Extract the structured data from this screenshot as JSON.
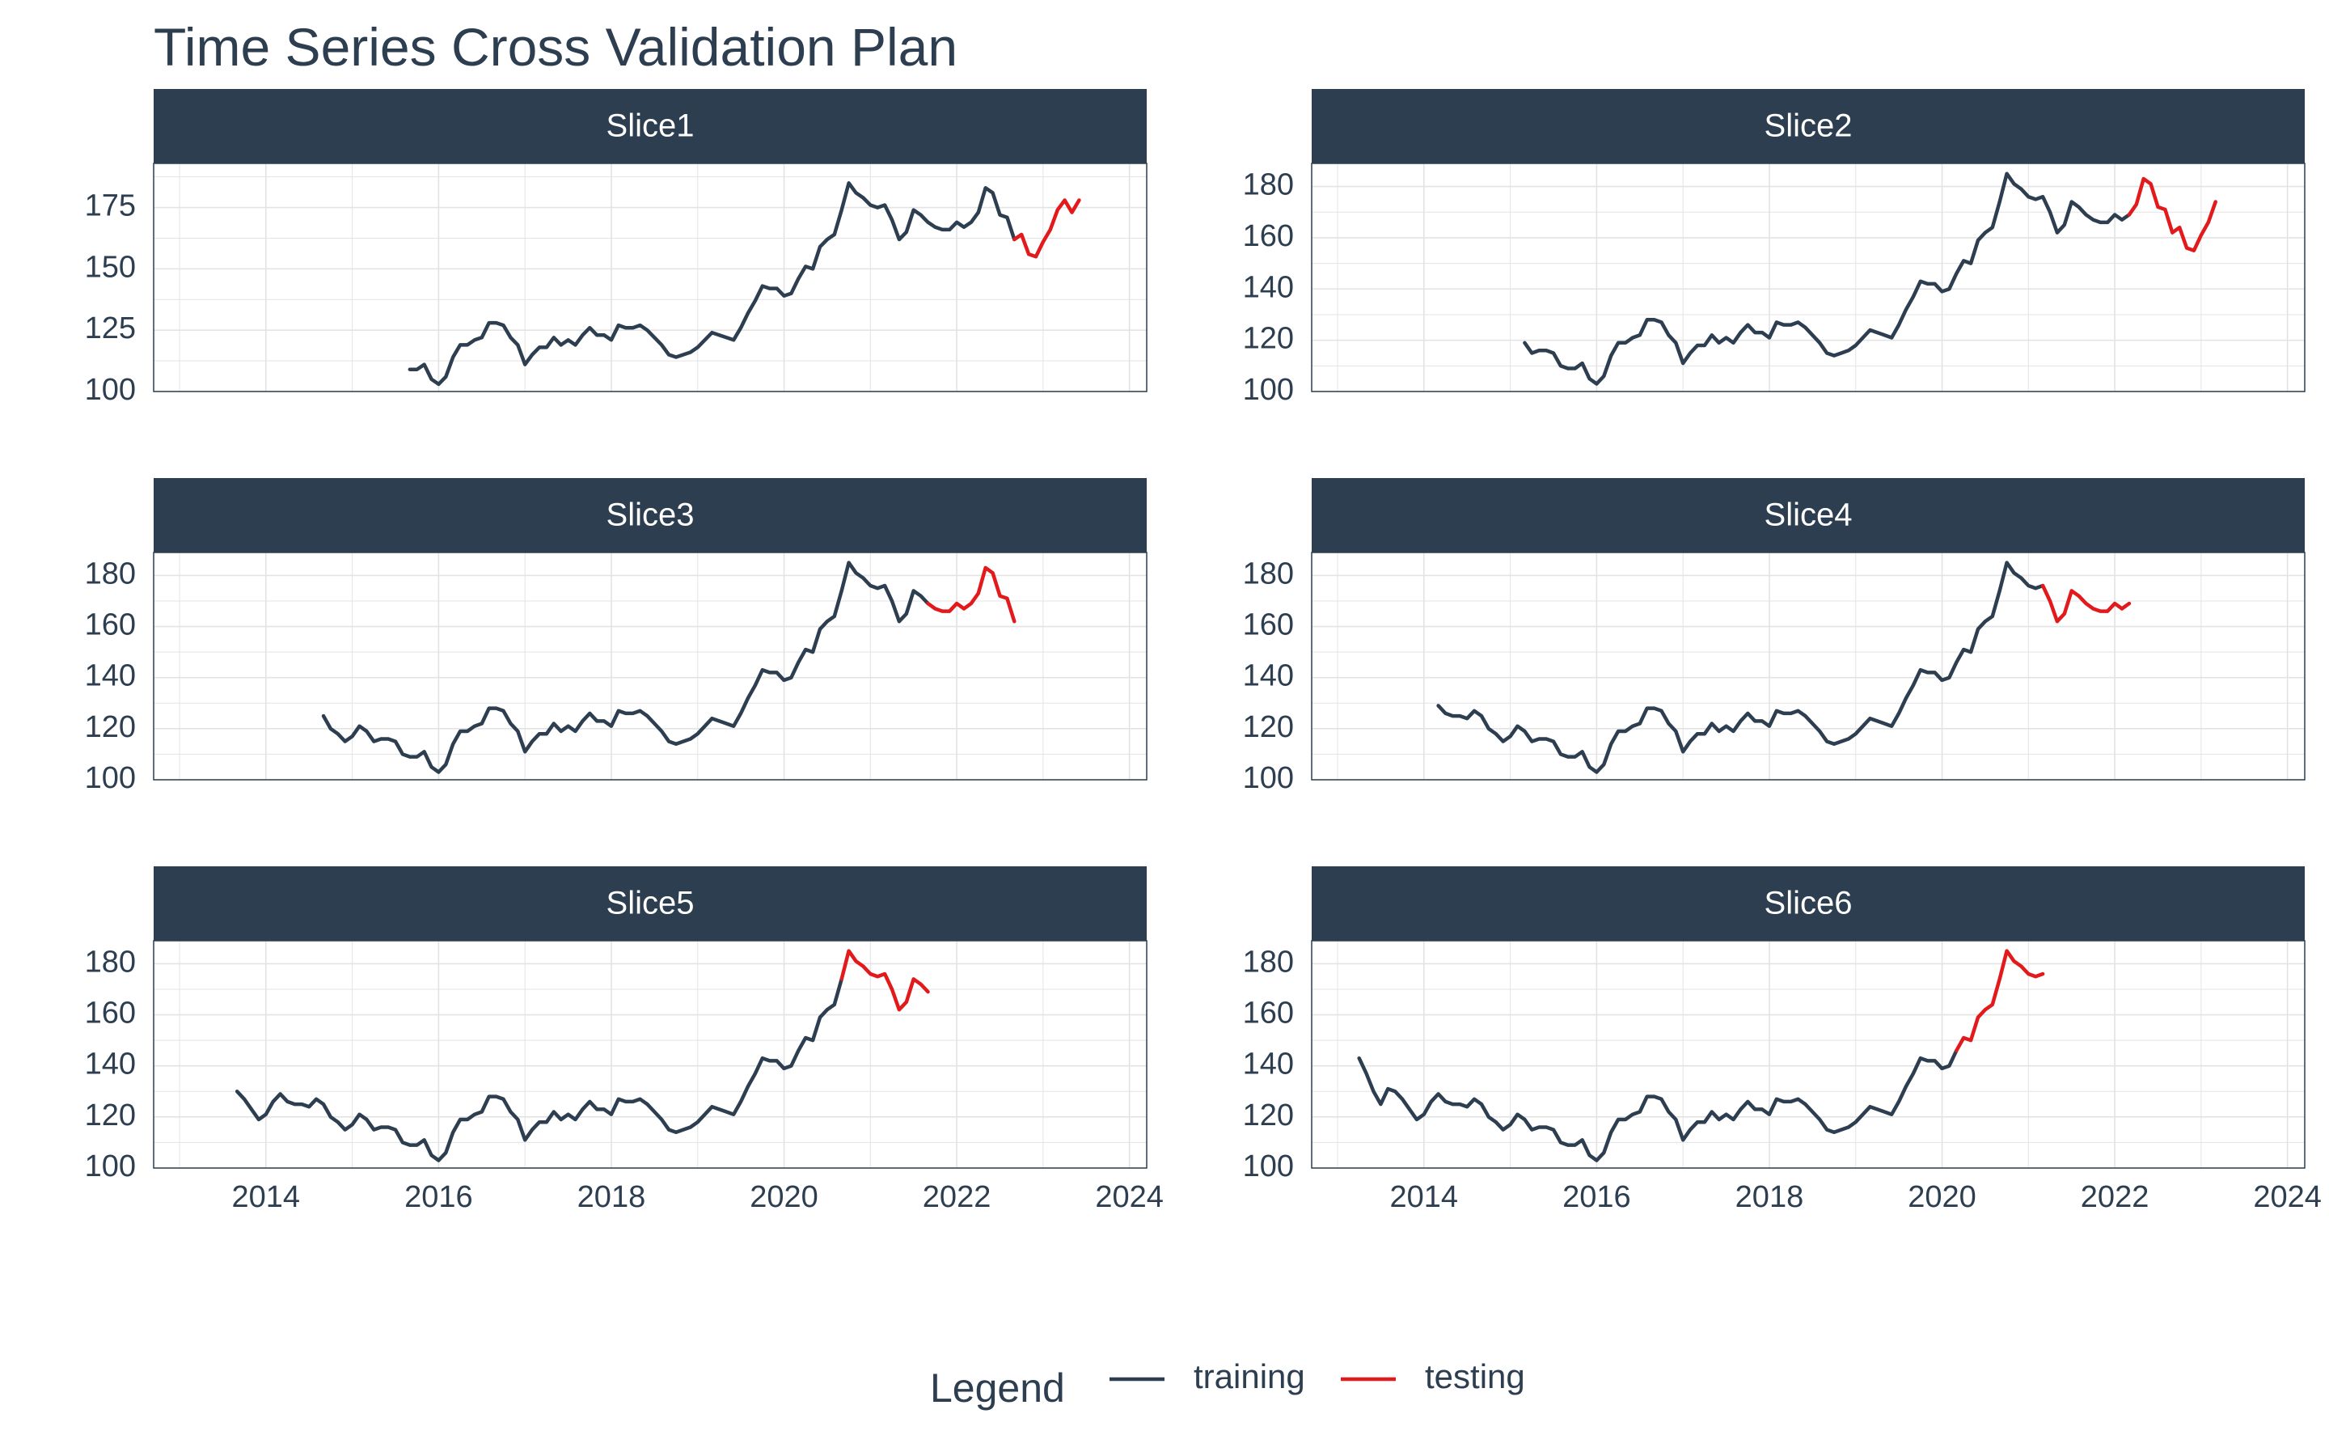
{
  "title": "Time Series Cross Validation Plan",
  "colors": {
    "strip": "#2c3e50",
    "training": "#2c3e50",
    "testing": "#e31a1c",
    "grid": "#e3e3e3",
    "axis": "#2c3e50"
  },
  "legend": {
    "title": "Legend",
    "items": [
      {
        "label": "training",
        "color": "#2c3e50"
      },
      {
        "label": "testing",
        "color": "#e31a1c"
      }
    ]
  },
  "chart_data": {
    "type": "line",
    "title": "Time Series Cross Validation Plan",
    "xlabel": "",
    "ylabel": "",
    "xlim": [
      2012.7,
      2024.2
    ],
    "x_ticks": [
      2014,
      2016,
      2018,
      2020,
      2022,
      2024
    ],
    "legend_position": "bottom",
    "grid": true,
    "series_x_start": 2013.25,
    "series_x_step": 0.0833333,
    "full_series": [
      143,
      137,
      130,
      125,
      131,
      130,
      127,
      123,
      119,
      121,
      126,
      129,
      126,
      125,
      125,
      124,
      127,
      125,
      120,
      118,
      115,
      117,
      121,
      119,
      115,
      116,
      116,
      115,
      110,
      109,
      109,
      111,
      105,
      103,
      106,
      114,
      119,
      119,
      121,
      122,
      128,
      128,
      127,
      122,
      119,
      111,
      115,
      118,
      118,
      122,
      119,
      121,
      119,
      123,
      126,
      123,
      123,
      121,
      127,
      126,
      126,
      127,
      125,
      122,
      119,
      115,
      114,
      115,
      116,
      118,
      121,
      124,
      123,
      122,
      121,
      126,
      132,
      137,
      143,
      142,
      142,
      139,
      140,
      146,
      151,
      150,
      159,
      162,
      164,
      174,
      185,
      181,
      179,
      176,
      175,
      176,
      170,
      162,
      165,
      174,
      172,
      169,
      167,
      166,
      166,
      169,
      167,
      169,
      173,
      183,
      181,
      172,
      171,
      162,
      164,
      156,
      155,
      161,
      166,
      174,
      178,
      173,
      178
    ],
    "facets": [
      {
        "label": "Slice1",
        "ylim": [
          100,
          193
        ],
        "yticks": [
          100,
          125,
          150,
          175
        ],
        "train_from": "2015-09",
        "train_to": "2022-09",
        "test_from": "2022-09",
        "test_to": "2023-09"
      },
      {
        "label": "Slice2",
        "ylim": [
          100,
          189
        ],
        "yticks": [
          100,
          120,
          140,
          160,
          180
        ],
        "train_from": "2015-03",
        "train_to": "2022-03",
        "test_from": "2022-03",
        "test_to": "2023-03"
      },
      {
        "label": "Slice3",
        "ylim": [
          100,
          189
        ],
        "yticks": [
          100,
          120,
          140,
          160,
          180
        ],
        "train_from": "2014-09",
        "train_to": "2021-09",
        "test_from": "2021-09",
        "test_to": "2022-09"
      },
      {
        "label": "Slice4",
        "ylim": [
          100,
          189
        ],
        "yticks": [
          100,
          120,
          140,
          160,
          180
        ],
        "train_from": "2014-03",
        "train_to": "2021-03",
        "test_from": "2021-03",
        "test_to": "2022-03"
      },
      {
        "label": "Slice5",
        "ylim": [
          100,
          189
        ],
        "yticks": [
          100,
          120,
          140,
          160,
          180
        ],
        "train_from": "2013-09",
        "train_to": "2020-09",
        "test_from": "2020-09",
        "test_to": "2021-09"
      },
      {
        "label": "Slice6",
        "ylim": [
          100,
          189
        ],
        "yticks": [
          100,
          120,
          140,
          160,
          180
        ],
        "train_from": "2013-03",
        "train_to": "2020-03",
        "test_from": "2020-03",
        "test_to": "2021-03"
      }
    ]
  }
}
